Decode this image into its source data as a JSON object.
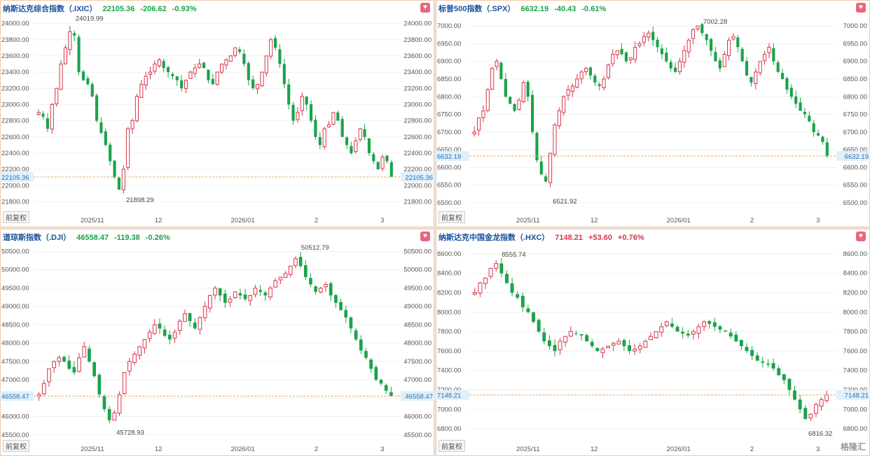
{
  "colors": {
    "up": "#d9344a",
    "down": "#1aa34a",
    "frame": "#f0c9a8",
    "price_line": "#e3a76b",
    "grid": "#f1f1f1",
    "tag_bg": "#dff0fb",
    "label_blue": "#1a4f9c"
  },
  "adj_label": "前复权",
  "fav_icon": "heart-icon",
  "logo": {
    "icon": "gelonghui-logo",
    "text": "格隆汇"
  },
  "panels": [
    {
      "name": "纳斯达克综合指数（.IXIC）",
      "price": "22105.36",
      "change": "-206.62",
      "pct": "-0.93%",
      "direction": "down",
      "y_ticks_left": [
        "24000.00",
        "23800.00",
        "23600.00",
        "23400.00",
        "23200.00",
        "23000.00",
        "22800.00",
        "22600.00",
        "22400.00",
        "22200.00",
        "22000.00",
        "21800.00"
      ],
      "y_ticks_right": [
        "24000.00",
        "23800.00",
        "23600.00",
        "23400.00",
        "23200.00",
        "23000.00",
        "22800.00",
        "22600.00",
        "22400.00",
        "22200.00",
        "22000.00",
        "21800.00"
      ],
      "x_ticks": [
        "2025/11",
        "12",
        "2026/01",
        "2",
        "3"
      ],
      "last_tag": "22105.36",
      "high_label": "24019.99",
      "low_label": "21898.29"
    },
    {
      "name": "标普500指数（.SPX）",
      "price": "6632.19",
      "change": "-40.43",
      "pct": "-0.61%",
      "direction": "down",
      "y_ticks_left": [
        "7000.00",
        "6950.00",
        "6900.00",
        "6850.00",
        "6800.00",
        "6750.00",
        "6700.00",
        "6650.00",
        "6600.00",
        "6550.00",
        "6500.00"
      ],
      "y_ticks_right": [
        "7000.00",
        "6950.00",
        "6900.00",
        "6850.00",
        "6800.00",
        "6750.00",
        "6700.00",
        "6650.00",
        "6600.00",
        "6550.00",
        "6500.00"
      ],
      "x_ticks": [
        "2025/11",
        "12",
        "2026/01",
        "2",
        "3"
      ],
      "last_tag": "6632.19",
      "high_label": "7002.28",
      "low_label": "6521.92"
    },
    {
      "name": "道琼斯指数（.DJI）",
      "price": "46558.47",
      "change": "-119.38",
      "pct": "-0.26%",
      "direction": "down",
      "y_ticks_left": [
        "50500.00",
        "50000.00",
        "49500.00",
        "49000.00",
        "48500.00",
        "48000.00",
        "47500.00",
        "47000.00",
        "46500.00",
        "46000.00",
        "45500.00"
      ],
      "y_ticks_right": [
        "50500.00",
        "50000.00",
        "49500.00",
        "49000.00",
        "48500.00",
        "48000.00",
        "47500.00",
        "47000.00",
        "46500.00",
        "46000.00",
        "45500.00"
      ],
      "x_ticks": [
        "2025/11",
        "12",
        "2026/01",
        "2",
        "3"
      ],
      "last_tag": "46558.47",
      "high_label": "50512.79",
      "low_label": "45728.93"
    },
    {
      "name": "纳斯达克中国金龙指数（.HXC）",
      "price": "7148.21",
      "change": "+53.60",
      "pct": "+0.76%",
      "direction": "up",
      "y_ticks_left": [
        "8600.00",
        "8400.00",
        "8200.00",
        "8000.00",
        "7800.00",
        "7600.00",
        "7400.00",
        "7200.00",
        "7000.00",
        "6800.00"
      ],
      "y_ticks_right": [
        "8600.00",
        "8400.00",
        "8200.00",
        "8000.00",
        "7800.00",
        "7600.00",
        "7400.00",
        "7200.00",
        "7000.00",
        "6800.00"
      ],
      "x_ticks": [
        "2025/11",
        "12",
        "2026/01",
        "2",
        "3"
      ],
      "last_tag": "7148.21",
      "high_label": "8555.74",
      "low_label": "6816.32"
    }
  ],
  "chart_data": [
    {
      "type": "candlestick",
      "title": "纳斯达克综合指数（.IXIC）",
      "ylim": [
        21700,
        24100
      ],
      "x_ticks": [
        "2025/11",
        "12",
        "2026/01",
        "2",
        "3"
      ],
      "close": [
        22900,
        22850,
        22700,
        23000,
        23200,
        23500,
        23700,
        23900,
        23850,
        23400,
        23300,
        23250,
        23100,
        22800,
        22650,
        22500,
        22300,
        22100,
        21950,
        22200,
        22700,
        22800,
        23100,
        23250,
        23350,
        23400,
        23500,
        23550,
        23450,
        23400,
        23350,
        23300,
        23200,
        23300,
        23400,
        23450,
        23500,
        23450,
        23300,
        23250,
        23400,
        23500,
        23550,
        23600,
        23700,
        23650,
        23500,
        23300,
        23200,
        23250,
        23400,
        23600,
        23800,
        23700,
        23500,
        23250,
        23000,
        22800,
        22900,
        23100,
        23000,
        22800,
        22600,
        22500,
        22700,
        22750,
        22900,
        22800,
        22600,
        22500,
        22400,
        22550,
        22700,
        22600,
        22400,
        22300,
        22200,
        22350,
        22300,
        22105.36
      ],
      "high_label": 24019.99,
      "low_label": 21898.29,
      "last": 22105.36
    },
    {
      "type": "candlestick",
      "title": "标普500指数（.SPX）",
      "ylim": [
        6480,
        7030
      ],
      "x_ticks": [
        "2025/11",
        "12",
        "2026/01",
        "2",
        "3"
      ],
      "close": [
        6700,
        6740,
        6760,
        6820,
        6880,
        6900,
        6850,
        6800,
        6780,
        6760,
        6790,
        6840,
        6800,
        6700,
        6620,
        6580,
        6560,
        6640,
        6720,
        6760,
        6800,
        6820,
        6830,
        6850,
        6870,
        6880,
        6860,
        6840,
        6830,
        6850,
        6890,
        6920,
        6930,
        6920,
        6900,
        6910,
        6940,
        6950,
        6970,
        6980,
        6960,
        6940,
        6920,
        6900,
        6880,
        6870,
        6900,
        6930,
        6960,
        6990,
        7000,
        6980,
        6960,
        6930,
        6900,
        6880,
        6920,
        6960,
        6970,
        6940,
        6900,
        6860,
        6840,
        6870,
        6900,
        6920,
        6940,
        6900,
        6870,
        6850,
        6820,
        6800,
        6780,
        6760,
        6750,
        6730,
        6700,
        6690,
        6672,
        6632.19
      ],
      "high_label": 7002.28,
      "low_label": 6521.92,
      "last": 6632.19
    },
    {
      "type": "candlestick",
      "title": "道琼斯指数（.DJI）",
      "ylim": [
        45400,
        50700
      ],
      "x_ticks": [
        "2025/11",
        "12",
        "2026/01",
        "2",
        "3"
      ],
      "close": [
        46600,
        46900,
        47300,
        47500,
        47600,
        47500,
        47300,
        47200,
        47600,
        47900,
        47500,
        47100,
        46600,
        46200,
        45900,
        46100,
        46600,
        47200,
        47500,
        47700,
        47900,
        48100,
        48300,
        48500,
        48400,
        48200,
        48100,
        48300,
        48600,
        48800,
        48600,
        48400,
        48700,
        49000,
        49300,
        49500,
        49300,
        49100,
        49200,
        49400,
        49300,
        49200,
        49300,
        49500,
        49400,
        49300,
        49500,
        49700,
        49800,
        49900,
        50100,
        50300,
        50100,
        49800,
        49600,
        49400,
        49500,
        49600,
        49300,
        49100,
        48900,
        48700,
        48400,
        48100,
        47800,
        47600,
        47300,
        47000,
        46900,
        46700,
        46558.47
      ],
      "high_label": 50512.79,
      "low_label": 45728.93,
      "last": 46558.47
    },
    {
      "type": "candlestick",
      "title": "纳斯达克中国金龙指数（.HXC）",
      "ylim": [
        6700,
        8700
      ],
      "x_ticks": [
        "2025/11",
        "12",
        "2026/01",
        "2",
        "3"
      ],
      "close": [
        8200,
        8300,
        8350,
        8450,
        8500,
        8400,
        8300,
        8200,
        8150,
        8050,
        8000,
        7900,
        7800,
        7700,
        7650,
        7600,
        7700,
        7750,
        7800,
        7780,
        7760,
        7700,
        7650,
        7600,
        7620,
        7650,
        7680,
        7700,
        7650,
        7600,
        7620,
        7650,
        7700,
        7750,
        7800,
        7850,
        7900,
        7850,
        7800,
        7780,
        7760,
        7800,
        7850,
        7900,
        7880,
        7850,
        7820,
        7800,
        7750,
        7700,
        7650,
        7600,
        7550,
        7500,
        7480,
        7460,
        7420,
        7350,
        7300,
        7200,
        7100,
        7000,
        6900,
        6950,
        7050,
        7100,
        7148.21
      ],
      "high_label": 8555.74,
      "low_label": 6816.32,
      "last": 7148.21
    }
  ]
}
